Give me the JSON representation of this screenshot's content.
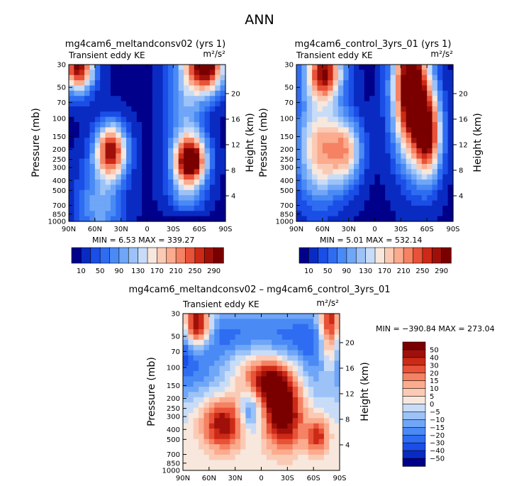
{
  "page_title": "ANN",
  "chart_data": [
    {
      "id": "panel1",
      "type": "heatmap",
      "title": "mg4cam6_meltandconsv02 (yrs 1)",
      "subtitle_left": "Transient eddy KE",
      "units": "m²/s²",
      "xlabel": "",
      "ylabel": "Pressure (mb)",
      "y2label": "Height (km)",
      "x_ticks": [
        "90N",
        "60N",
        "30N",
        "0",
        "30S",
        "60S",
        "90S"
      ],
      "y_ticks": [
        "30",
        "50",
        "70",
        "100",
        "150",
        "200",
        "250",
        "300",
        "400",
        "500",
        "700",
        "850",
        "1000"
      ],
      "y2_ticks": [
        "20",
        "16",
        "12",
        "8",
        "4"
      ],
      "ylim": [
        1000,
        30
      ],
      "min_text": "MIN =    6.53   MAX = 339.27",
      "min": 6.53,
      "max": 339.27,
      "colorbar_labels": [
        "10",
        "50",
        "90",
        "130",
        "170",
        "210",
        "250",
        "290"
      ],
      "colorbar_levels": [
        10,
        30,
        50,
        70,
        90,
        110,
        130,
        150,
        170,
        190,
        210,
        230,
        250,
        270,
        290
      ]
    },
    {
      "id": "panel2",
      "type": "heatmap",
      "title": "mg4cam6_control_3yrs_01 (yrs 1)",
      "subtitle_left": "Transient eddy KE",
      "units": "m²/s²",
      "xlabel": "",
      "ylabel": "Pressure (mb)",
      "y2label": "Height (km)",
      "x_ticks": [
        "90N",
        "60N",
        "30N",
        "0",
        "30S",
        "60S",
        "90S"
      ],
      "y_ticks": [
        "30",
        "50",
        "70",
        "100",
        "150",
        "200",
        "250",
        "300",
        "400",
        "500",
        "700",
        "850",
        "1000"
      ],
      "y2_ticks": [
        "20",
        "16",
        "12",
        "8",
        "4"
      ],
      "ylim": [
        1000,
        30
      ],
      "min_text": "MIN =    5.01   MAX = 532.14",
      "min": 5.01,
      "max": 532.14,
      "colorbar_labels": [
        "10",
        "50",
        "90",
        "130",
        "170",
        "210",
        "250",
        "290"
      ],
      "colorbar_levels": [
        10,
        30,
        50,
        70,
        90,
        110,
        130,
        150,
        170,
        190,
        210,
        230,
        250,
        270,
        290
      ]
    },
    {
      "id": "panel3",
      "type": "heatmap",
      "title": "mg4cam6_meltandconsv02 – mg4cam6_control_3yrs_01",
      "subtitle_left": "Transient eddy KE",
      "units": "m²/s²",
      "xlabel": "",
      "ylabel": "Pressure (mb)",
      "y2label": "Height (km)",
      "x_ticks": [
        "90N",
        "60N",
        "30N",
        "0",
        "30S",
        "60S",
        "90S"
      ],
      "y_ticks": [
        "30",
        "50",
        "70",
        "100",
        "150",
        "200",
        "250",
        "300",
        "400",
        "500",
        "700",
        "850",
        "1000"
      ],
      "y2_ticks": [
        "20",
        "16",
        "12",
        "8",
        "4"
      ],
      "ylim": [
        1000,
        30
      ],
      "min_text": "MIN = −390.84   MAX = 273.04",
      "min": -390.84,
      "max": 273.04,
      "colorbar_labels": [
        "50",
        "40",
        "30",
        "20",
        "15",
        "10",
        "5",
        "0",
        "−5",
        "−10",
        "−15",
        "−20",
        "−30",
        "−40",
        "−50"
      ],
      "colorbar_levels": [
        -50,
        -40,
        -30,
        -20,
        -15,
        -10,
        -5,
        0,
        5,
        10,
        15,
        20,
        30,
        40,
        50
      ]
    }
  ],
  "colors": {
    "seq": [
      "#00008a",
      "#0a2bc2",
      "#1a4ee6",
      "#2e6cf2",
      "#4a8af5",
      "#6fa6f7",
      "#9cc2f7",
      "#c8dcf7",
      "#f7e7dc",
      "#fbcab5",
      "#fbab8e",
      "#f58263",
      "#e85238",
      "#cc2a16",
      "#a0100a",
      "#7a0000"
    ],
    "div": [
      "#00008a",
      "#0a2bc2",
      "#1a4ee6",
      "#2e6cf2",
      "#4a8af5",
      "#6fa6f7",
      "#9cc2f7",
      "#c8dcf7",
      "#f7e7dc",
      "#fbcab5",
      "#fbab8e",
      "#f58263",
      "#e85238",
      "#cc2a16",
      "#a0100a",
      "#7a0000"
    ]
  }
}
